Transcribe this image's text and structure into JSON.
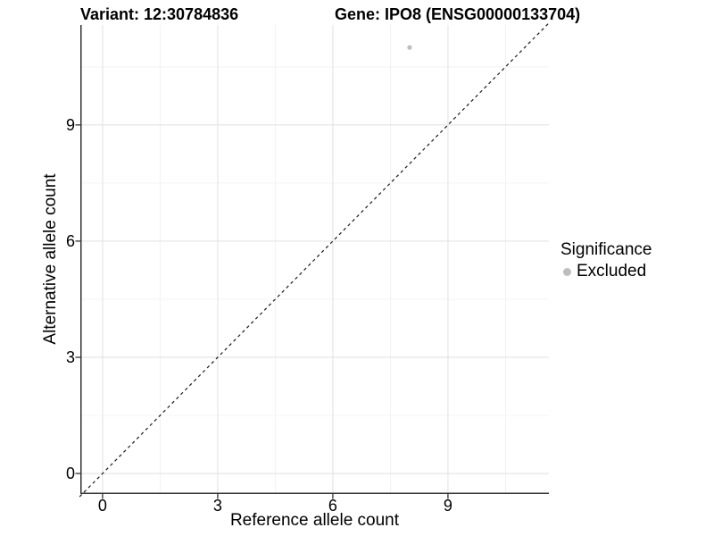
{
  "header": {
    "variant_title": "Variant: 12:30784836",
    "gene_title": "Gene: IPO8 (ENSG00000133704)"
  },
  "chart_data": {
    "type": "scatter",
    "xlabel": "Reference allele count",
    "ylabel": "Alternative allele count",
    "xlim": [
      -0.58,
      11.63
    ],
    "ylim": [
      -0.53,
      11.58
    ],
    "xticks": [
      0,
      3,
      6,
      9
    ],
    "yticks": [
      0,
      3,
      6,
      9
    ],
    "xminor": [
      1.5,
      4.5,
      7.5,
      10.5
    ],
    "yminor": [
      1.5,
      4.5,
      7.5,
      10.5
    ],
    "grid": "on",
    "identity_line": {
      "slope": 1,
      "intercept": 0,
      "style": "dashed"
    },
    "series": [
      {
        "name": "Excluded",
        "color": "#bdbdbd",
        "points": [
          {
            "x": 8,
            "y": 11
          }
        ]
      }
    ],
    "legend": {
      "title": "Significance",
      "position": "right",
      "items": [
        {
          "label": "Excluded",
          "color": "#bdbdbd"
        }
      ]
    }
  },
  "colors": {
    "background": "#ffffff",
    "text": "#000000",
    "axis_line": "#333333",
    "tick_mark": "#333333",
    "grid_major": "#e3e3e3",
    "grid_minor": "#f0f0f0",
    "identity_line": "#1a1a1a",
    "point": "#bdbdbd"
  }
}
